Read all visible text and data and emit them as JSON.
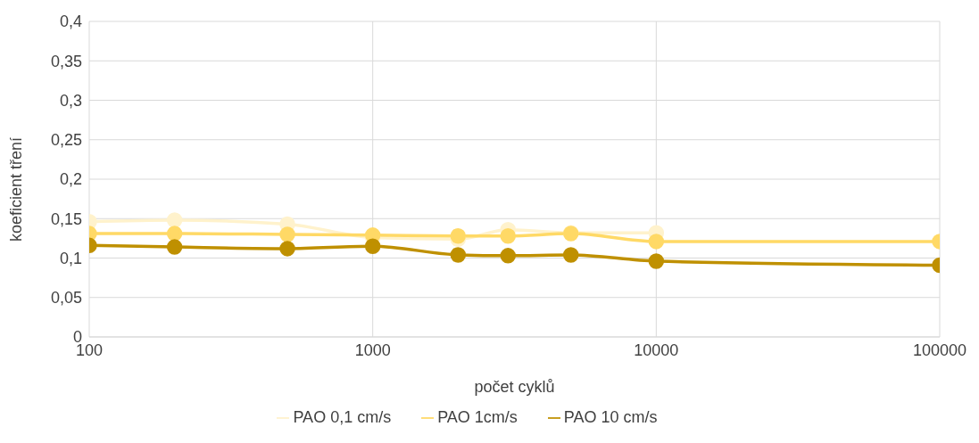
{
  "chart_data": {
    "type": "line",
    "xlabel": "počet cyklů",
    "ylabel": "koeficient tření",
    "x": [
      100,
      200,
      500,
      1000,
      2000,
      3000,
      5000,
      10000,
      100000
    ],
    "series": [
      {
        "name": "PAO 0,1 cm/s",
        "color": "#fff2cc",
        "values": [
          0.146,
          0.148,
          0.143,
          0.126,
          0.124,
          0.136,
          0.132,
          0.132,
          null
        ]
      },
      {
        "name": "PAO 1cm/s",
        "color": "#ffd966",
        "values": [
          0.131,
          0.131,
          0.13,
          0.129,
          0.128,
          0.128,
          0.131,
          0.121,
          0.121
        ]
      },
      {
        "name": "PAO 10 cm/s",
        "color": "#bf9000",
        "values": [
          0.116,
          0.114,
          0.112,
          0.115,
          0.104,
          0.103,
          0.104,
          0.096,
          0.091
        ]
      }
    ],
    "log": "x",
    "xlim": [
      100,
      100000
    ],
    "xticks": [
      100,
      1000,
      10000,
      100000
    ],
    "ylim": [
      0,
      0.4
    ],
    "yticks": [
      {
        "value": 0,
        "label": "0"
      },
      {
        "value": 0.05,
        "label": "0,05"
      },
      {
        "value": 0.1,
        "label": "0,1"
      },
      {
        "value": 0.15,
        "label": "0,15"
      },
      {
        "value": 0.2,
        "label": "0,2"
      },
      {
        "value": 0.25,
        "label": "0,25"
      },
      {
        "value": 0.3,
        "label": "0,3"
      },
      {
        "value": 0.35,
        "label": "0,35"
      },
      {
        "value": 0.4,
        "label": "0,4"
      }
    ],
    "grid": true,
    "legend": "bottom",
    "marker": "circle",
    "line_style": "solid"
  }
}
